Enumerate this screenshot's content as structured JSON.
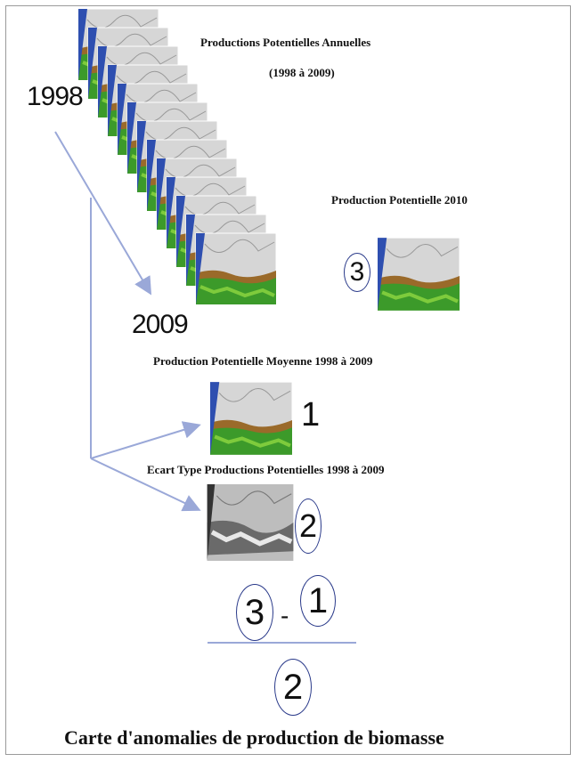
{
  "titles": {
    "annual_line1": "Productions Potentielles Annuelles",
    "annual_line2": "(1998 à 2009)",
    "production_2010": "Production Potentielle 2010",
    "mean": "Production Potentielle Moyenne 1998 à 2009",
    "ecart": "Ecart Type  Productions Potentielles 1998 à 2009",
    "bottom": "Carte d'anomalies  de production de biomasse"
  },
  "years": {
    "start": "1998",
    "end": "2009"
  },
  "labels": {
    "production_2010": "3",
    "mean": "1",
    "ecart": "2",
    "formula_left": "3",
    "formula_minus": "-",
    "formula_right": "1",
    "formula_denominator": "2"
  },
  "colors": {
    "ocean": "#2e4fb0",
    "vegetation_dark": "#3c9a2a",
    "vegetation_light": "#7ecb3c",
    "soil": "#9a6a2a",
    "desert": "#d8d8d8",
    "arrow": "#9aa8d8",
    "circle": "#2a3a8a"
  }
}
